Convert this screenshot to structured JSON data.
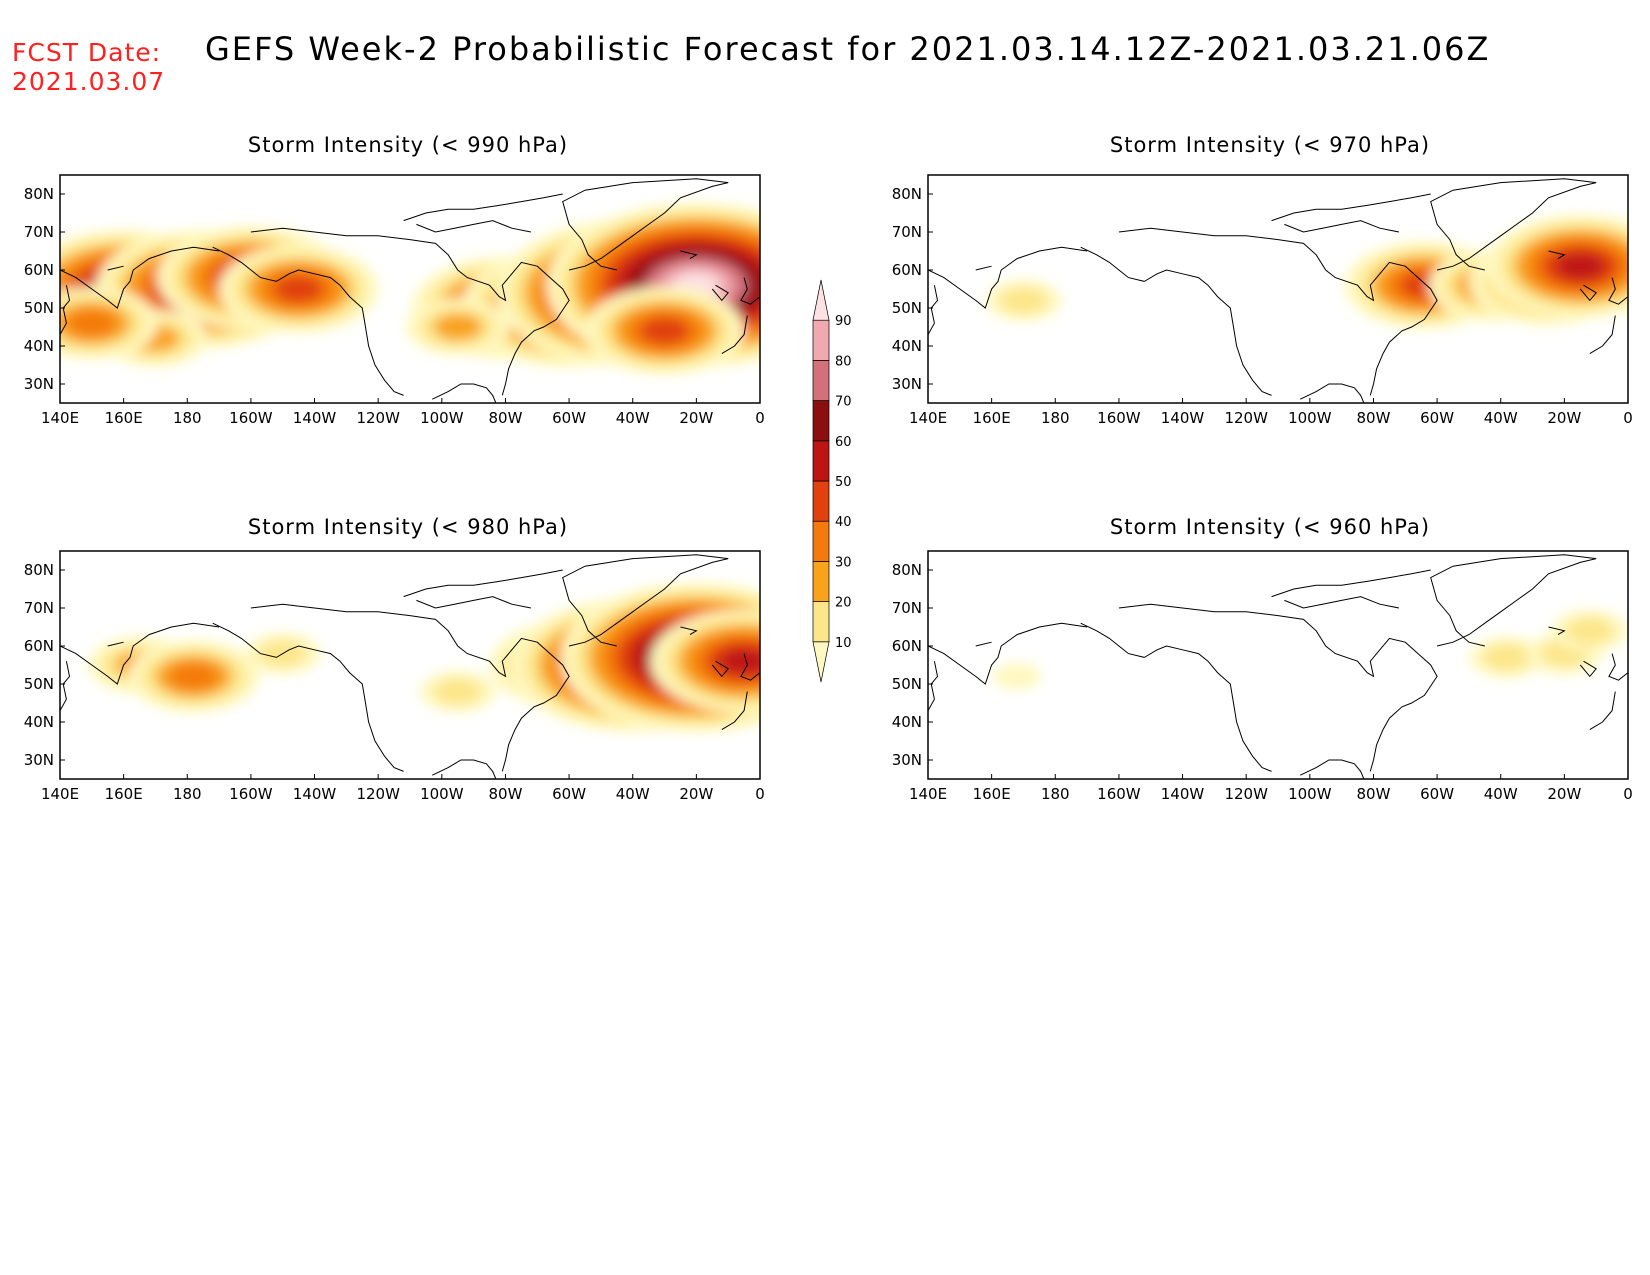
{
  "fcst_date_label": "FCST Date:",
  "fcst_date_value": "2021.03.07",
  "title": "GEFS Week-2 Probabilistic Forecast for 2021.03.14.12Z-2021.03.21.06Z",
  "colorbar": {
    "levels": [
      "10",
      "20",
      "30",
      "40",
      "50",
      "60",
      "70",
      "80",
      "90"
    ],
    "colors": [
      "#fff8c0",
      "#fde68a",
      "#f9a21b",
      "#f47a0d",
      "#e0410f",
      "#bf1414",
      "#8c0f0f",
      "#d4707a",
      "#f0a9ae",
      "#fde1e3"
    ]
  },
  "chart_data": [
    {
      "type": "heatmap",
      "title": "Storm Intensity (< 990 hPa)",
      "x_ticks": [
        "140E",
        "160E",
        "180",
        "160W",
        "140W",
        "120W",
        "100W",
        "80W",
        "60W",
        "40W",
        "20W",
        "0"
      ],
      "y_ticks": [
        "80N",
        "70N",
        "60N",
        "50N",
        "40N",
        "30N"
      ],
      "lon_range": [
        140,
        360
      ],
      "lat_range": [
        25,
        85
      ],
      "blobs": [
        {
          "lon": 160,
          "lat": 55,
          "level": 6
        },
        {
          "lon": 185,
          "lat": 55,
          "level": 6
        },
        {
          "lon": 200,
          "lat": 58,
          "level": 5
        },
        {
          "lon": 215,
          "lat": 55,
          "level": 4
        },
        {
          "lon": 170,
          "lat": 42,
          "level": 2
        },
        {
          "lon": 150,
          "lat": 46,
          "level": 3
        },
        {
          "lon": 280,
          "lat": 50,
          "level": 5
        },
        {
          "lon": 300,
          "lat": 50,
          "level": 6
        },
        {
          "lon": 320,
          "lat": 54,
          "level": 8
        },
        {
          "lon": 340,
          "lat": 56,
          "level": 9
        },
        {
          "lon": 330,
          "lat": 44,
          "level": 4
        },
        {
          "lon": 265,
          "lat": 45,
          "level": 2
        }
      ]
    },
    {
      "type": "heatmap",
      "title": "Storm Intensity (< 970 hPa)",
      "x_ticks": [
        "140E",
        "160E",
        "180",
        "160W",
        "140W",
        "120W",
        "100W",
        "80W",
        "60W",
        "40W",
        "20W",
        "0"
      ],
      "y_ticks": [
        "80N",
        "70N",
        "60N",
        "50N",
        "40N",
        "30N"
      ],
      "lon_range": [
        140,
        360
      ],
      "lat_range": [
        25,
        85
      ],
      "blobs": [
        {
          "lon": 170,
          "lat": 52,
          "level": 1
        },
        {
          "lon": 296,
          "lat": 56,
          "level": 4
        },
        {
          "lon": 318,
          "lat": 56,
          "level": 3
        },
        {
          "lon": 335,
          "lat": 57,
          "level": 4
        },
        {
          "lon": 345,
          "lat": 61,
          "level": 5
        }
      ]
    },
    {
      "type": "heatmap",
      "title": "Storm Intensity (< 980 hPa)",
      "x_ticks": [
        "140E",
        "160E",
        "180",
        "160W",
        "140W",
        "120W",
        "100W",
        "80W",
        "60W",
        "40W",
        "20W",
        "0"
      ],
      "y_ticks": [
        "80N",
        "70N",
        "60N",
        "50N",
        "40N",
        "30N"
      ],
      "lon_range": [
        140,
        360
      ],
      "lat_range": [
        25,
        85
      ],
      "blobs": [
        {
          "lon": 165,
          "lat": 55,
          "level": 2
        },
        {
          "lon": 182,
          "lat": 52,
          "level": 3
        },
        {
          "lon": 210,
          "lat": 58,
          "level": 1
        },
        {
          "lon": 265,
          "lat": 48,
          "level": 1
        },
        {
          "lon": 300,
          "lat": 55,
          "level": 4
        },
        {
          "lon": 320,
          "lat": 55,
          "level": 7
        },
        {
          "lon": 340,
          "lat": 57,
          "level": 8
        },
        {
          "lon": 355,
          "lat": 56,
          "level": 5
        }
      ]
    },
    {
      "type": "heatmap",
      "title": "Storm Intensity (< 960 hPa)",
      "x_ticks": [
        "140E",
        "160E",
        "180",
        "160W",
        "140W",
        "120W",
        "100W",
        "80W",
        "60W",
        "40W",
        "20W",
        "0"
      ],
      "y_ticks": [
        "80N",
        "70N",
        "60N",
        "50N",
        "40N",
        "30N"
      ],
      "lon_range": [
        140,
        360
      ],
      "lat_range": [
        25,
        85
      ],
      "blobs": [
        {
          "lon": 168,
          "lat": 52,
          "level": 0
        },
        {
          "lon": 322,
          "lat": 57,
          "level": 1
        },
        {
          "lon": 340,
          "lat": 58,
          "level": 1
        },
        {
          "lon": 348,
          "lat": 64,
          "level": 1
        }
      ]
    }
  ]
}
